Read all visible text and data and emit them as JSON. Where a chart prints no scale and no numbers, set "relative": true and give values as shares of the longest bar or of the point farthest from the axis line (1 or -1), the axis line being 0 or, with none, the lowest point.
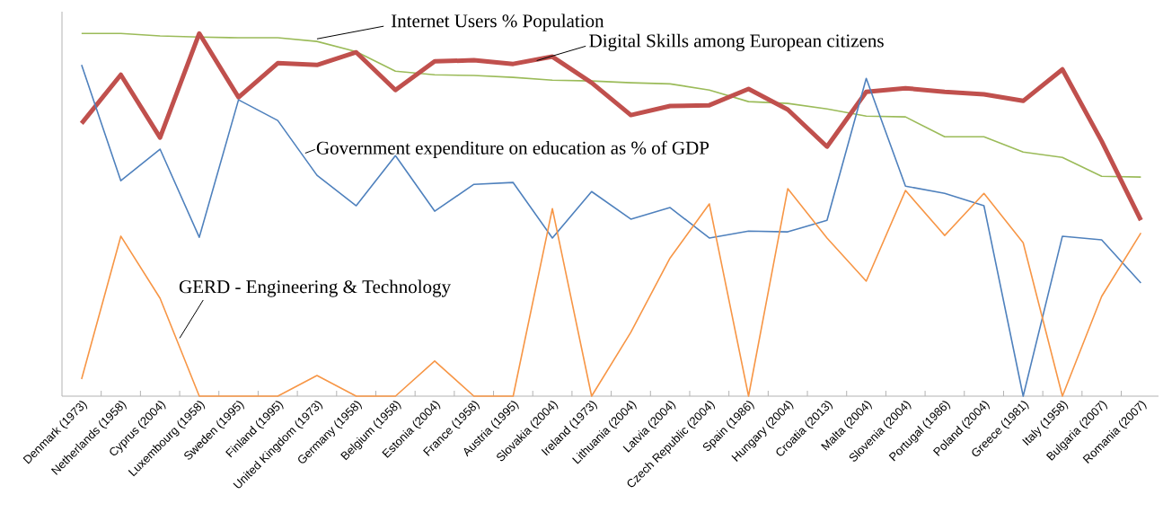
{
  "chart_data": {
    "type": "line",
    "relative": true,
    "categories": [
      "Denmark (1973)",
      "Netherlands (1958)",
      "Cyprus (2004)",
      "Luxembourg (1958)",
      "Sweden (1995)",
      "Finland (1995)",
      "United Kingdom (1973)",
      "Germany (1958)",
      "Belgium (1958)",
      "Estonia (2004)",
      "France (1958)",
      "Austria (1995)",
      "Slovakia (2004)",
      "Ireland (1973)",
      "Lithuania (2004)",
      "Latvia (2004)",
      "Czech Republic (2004)",
      "Spain (1986)",
      "Hungary (2004)",
      "Croatia (2013)",
      "Malta (2004)",
      "Slovenia (2004)",
      "Portugal (1986)",
      "Poland (2004)",
      "Greece (1981)",
      "Italy (1958)",
      "Bulgaria (2007)",
      "Romania (2007)"
    ],
    "series": [
      {
        "name": "Internet Users % Population",
        "color": "#9bbb59",
        "values": [
          1,
          1,
          0.993,
          0.99,
          0.988,
          0.988,
          0.978,
          0.95,
          0.896,
          0.886,
          0.884,
          0.879,
          0.871,
          0.869,
          0.864,
          0.861,
          0.844,
          0.812,
          0.807,
          0.792,
          0.772,
          0.77,
          0.715,
          0.715,
          0.673,
          0.658,
          0.606,
          0.604
        ]
      },
      {
        "name": "Digital Skills among European citizens",
        "color": "#c0504d",
        "values": [
          0.752,
          0.886,
          0.713,
          1,
          0.824,
          0.918,
          0.913,
          0.948,
          0.844,
          0.923,
          0.926,
          0.916,
          0.936,
          0.864,
          0.775,
          0.8,
          0.802,
          0.847,
          0.79,
          0.688,
          0.839,
          0.849,
          0.839,
          0.832,
          0.814,
          0.901,
          0.703,
          0.485
        ]
      },
      {
        "name": "Government expenditure on education as % of GDP",
        "color": "#4f81bd",
        "values": [
          0.913,
          0.594,
          0.681,
          0.438,
          0.817,
          0.76,
          0.609,
          0.525,
          0.663,
          0.51,
          0.584,
          0.589,
          0.436,
          0.564,
          0.488,
          0.52,
          0.436,
          0.455,
          0.453,
          0.485,
          0.876,
          0.579,
          0.559,
          0.525,
          0,
          0.441,
          0.431,
          0.312
        ]
      },
      {
        "name": "GERD - Engineering & Technology",
        "color": "#f79646",
        "values": [
          0.047,
          0.441,
          0.27,
          0,
          0,
          0,
          0.057,
          0,
          0,
          0.097,
          0,
          0,
          0.517,
          0,
          0.176,
          0.381,
          0.53,
          0,
          0.572,
          0.436,
          0.317,
          0.567,
          0.443,
          0.559,
          0.423,
          0,
          0.275,
          0.45
        ]
      }
    ]
  }
}
